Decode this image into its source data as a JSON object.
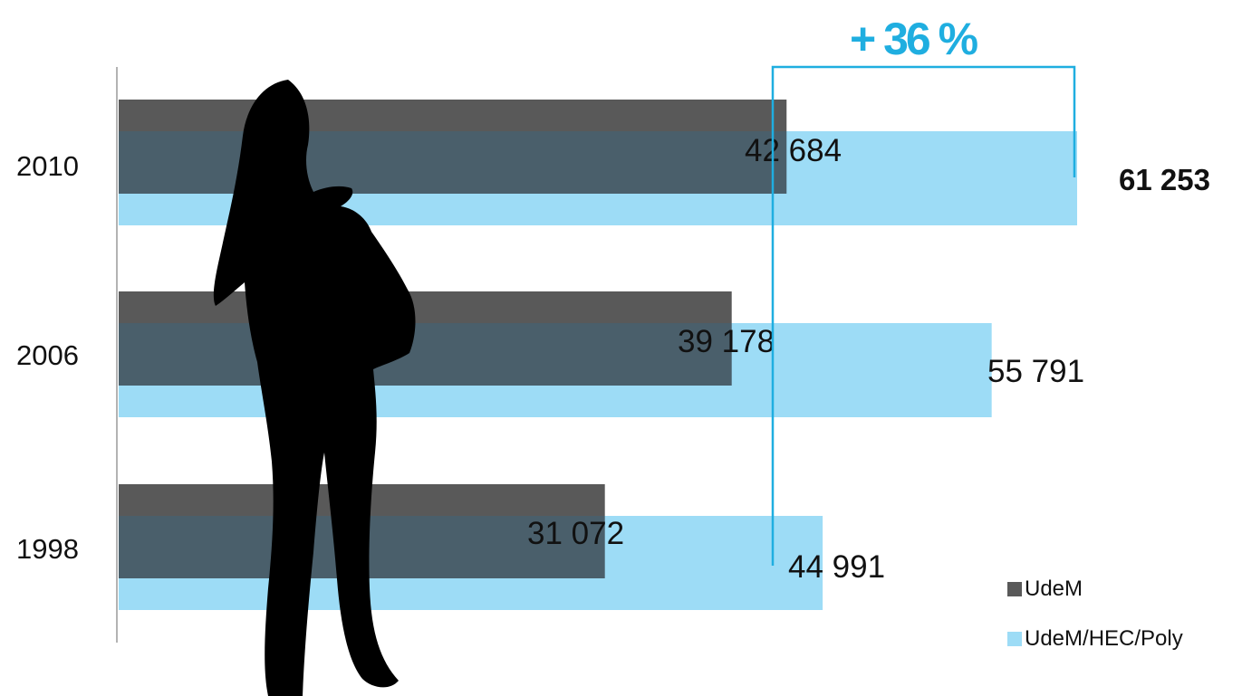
{
  "chart_data": {
    "type": "bar",
    "orientation": "horizontal",
    "categories": [
      "2010",
      "2006",
      "1998"
    ],
    "series": [
      {
        "name": "UdeM",
        "color": "#595959",
        "values": [
          42684,
          39178,
          31072
        ]
      },
      {
        "name": "UdeM/HEC/Poly",
        "color": "#9DDCF6",
        "values": [
          61253,
          55791,
          44991
        ]
      }
    ],
    "data_labels": {
      "UdeM": [
        "42 684",
        "39 178",
        "31 072"
      ],
      "UdeM/HEC/Poly": [
        "61 253",
        "55 791",
        "44 991"
      ]
    },
    "annotation": {
      "text": "+ 36 %",
      "from": "1998",
      "to": "2010",
      "color": "#1FAEE0"
    },
    "xlim": [
      0,
      68000
    ],
    "legend_position": "bottom-right",
    "grid": false
  }
}
